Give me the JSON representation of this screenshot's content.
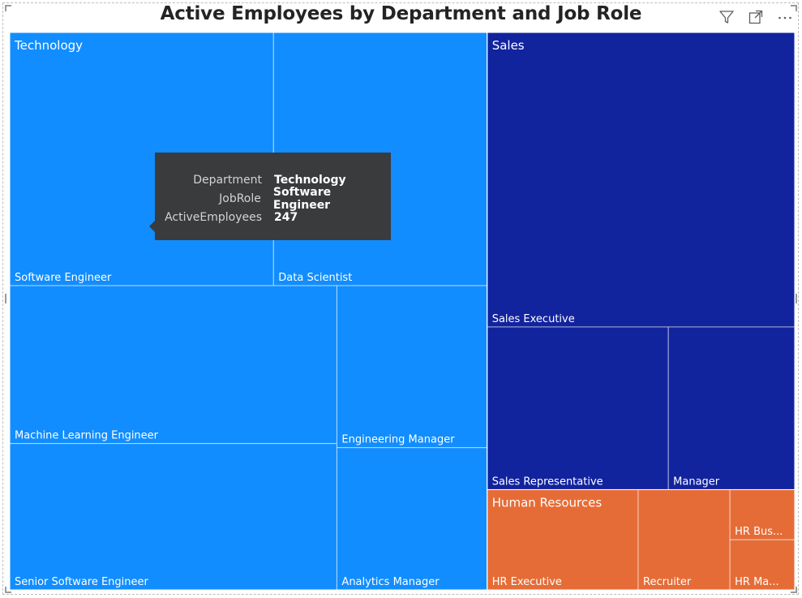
{
  "visual": {
    "title": "Active Employees by Department and Job Role",
    "header_icons": [
      {
        "name": "filter-icon"
      },
      {
        "name": "focus-mode-icon"
      },
      {
        "name": "more-options-icon"
      }
    ]
  },
  "colors": {
    "Technology": "#118dff",
    "Sales": "#12239e",
    "Human Resources": "#e66c37",
    "cell_border": "#ffffff",
    "tooltip_bg": "#3a3b3d"
  },
  "tooltip": {
    "rows": [
      {
        "label": "Department",
        "value": "Technology"
      },
      {
        "label": "JobRole",
        "value": "Software Engineer"
      },
      {
        "label": "ActiveEmployees",
        "value": "247"
      }
    ]
  },
  "chart_data": {
    "type": "treemap",
    "title": "Active Employees by Department and Job Role",
    "group_field": "Department",
    "detail_field": "JobRole",
    "value_field": "ActiveEmployees",
    "groups": [
      {
        "name": "Technology",
        "children": [
          {
            "name": "Software Engineer",
            "value": 247
          },
          {
            "name": "Data Scientist",
            "value": 200
          },
          {
            "name": "Machine Learning Engineer",
            "value": 191
          },
          {
            "name": "Senior Software Engineer",
            "value": 177
          },
          {
            "name": "Engineering Manager",
            "value": 90
          },
          {
            "name": "Analytics Manager",
            "value": 79
          }
        ]
      },
      {
        "name": "Sales",
        "children": [
          {
            "name": "Sales Executive",
            "value": 335
          },
          {
            "name": "Sales Representative",
            "value": 109
          },
          {
            "name": "Manager",
            "value": 76
          }
        ]
      },
      {
        "name": "Human Resources",
        "children": [
          {
            "name": "HR Executive",
            "value": 56
          },
          {
            "name": "Recruiter",
            "value": 34
          },
          {
            "name": "HR Bus...",
            "value": 12
          },
          {
            "name": "HR Ma...",
            "value": 12
          }
        ]
      }
    ]
  }
}
